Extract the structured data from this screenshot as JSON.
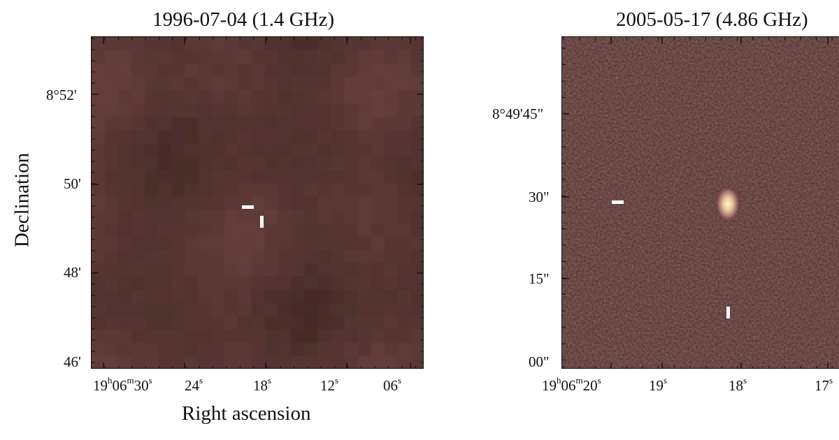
{
  "panels": [
    {
      "title": "1996-07-04 (1.4 GHz)",
      "y_ticks": [
        "8°52'",
        "50'",
        "48'",
        "46'"
      ],
      "x_ticks": [
        {
          "base": "19",
          "h": "h",
          "mid": "06",
          "m": "m",
          "tail": "30",
          "s": "s"
        },
        {
          "base": "24",
          "s": "s"
        },
        {
          "base": "18",
          "s": "s"
        },
        {
          "base": "12",
          "s": "s"
        },
        {
          "base": "06",
          "s": "s"
        }
      ],
      "ylabel": "Declination",
      "xlabel": "Right ascension"
    },
    {
      "title": "2005-05-17 (4.86 GHz)",
      "y_ticks": [
        "8°49'45\"",
        "30\"",
        "15\"",
        "00\""
      ],
      "x_ticks": [
        {
          "base": "19",
          "h": "h",
          "mid": "06",
          "m": "m",
          "tail": "20",
          "s": "s"
        },
        {
          "base": "19",
          "s": "s"
        },
        {
          "base": "18",
          "s": "s"
        },
        {
          "base": "17",
          "s": "s"
        }
      ]
    }
  ],
  "colors": {
    "background_map": "#5a3634",
    "marker": "#ffffff",
    "source": "#fff6c8"
  }
}
